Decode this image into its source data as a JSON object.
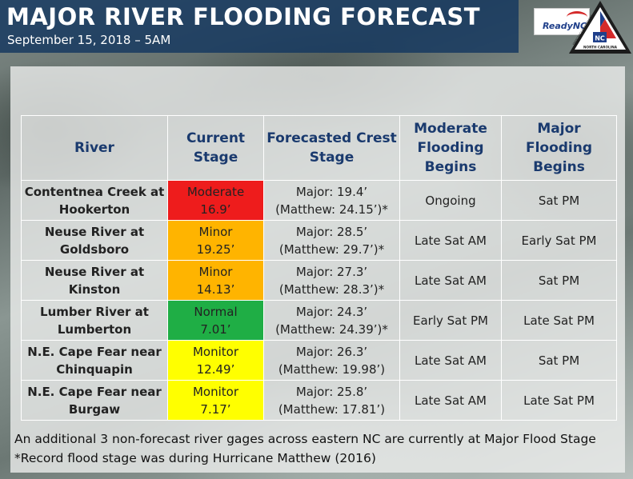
{
  "header": {
    "title": "MAJOR RIVER FLOODING FORECAST",
    "subtitle": "September 15, 2018 – 5AM"
  },
  "logos": {
    "readync_text": "ReadyNC",
    "emergency_text": "EMERGENCY MANAGEMENT",
    "state_text": "NORTH CAROLINA",
    "badge_text": "NC"
  },
  "table": {
    "headers": [
      "River",
      "Current Stage",
      "Forecasted Crest Stage",
      "Moderate Flooding Begins",
      "Major Flooding Begins"
    ],
    "rows": [
      {
        "river": "Contentnea Creek at Hookerton",
        "stage": "Moderate",
        "stage_value": "16.9’",
        "stage_color": "#ee1c1c",
        "crest": "Major: 19.4’",
        "crest_note": "(Matthew: 24.15’)*",
        "moderate": "Ongoing",
        "major": "Sat PM"
      },
      {
        "river": "Neuse River at Goldsboro",
        "stage": "Minor",
        "stage_value": "19.25’",
        "stage_color": "#ffb400",
        "crest": "Major: 28.5’",
        "crest_note": "(Matthew: 29.7’)*",
        "moderate": "Late Sat AM",
        "major": "Early Sat PM"
      },
      {
        "river": "Neuse River at Kinston",
        "stage": "Minor",
        "stage_value": "14.13’",
        "stage_color": "#ffb400",
        "crest": "Major: 27.3’",
        "crest_note": "(Matthew: 28.3’)*",
        "moderate": "Late Sat AM",
        "major": "Sat PM"
      },
      {
        "river": "Lumber River at Lumberton",
        "stage": "Normal",
        "stage_value": "7.01’",
        "stage_color": "#1fae45",
        "crest": "Major: 24.3’",
        "crest_note": "(Matthew: 24.39’)*",
        "moderate": "Early Sat PM",
        "major": "Late Sat PM"
      },
      {
        "river": "N.E. Cape Fear near Chinquapin",
        "stage": "Monitor",
        "stage_value": "12.49’",
        "stage_color": "#ffff00",
        "crest": "Major: 26.3’",
        "crest_note": "(Matthew: 19.98’)",
        "moderate": "Late Sat AM",
        "major": "Sat PM"
      },
      {
        "river": "N.E. Cape Fear near Burgaw",
        "stage": "Monitor",
        "stage_value": "7.17’",
        "stage_color": "#ffff00",
        "crest": "Major: 25.8’",
        "crest_note": "(Matthew: 17.81’)",
        "moderate": "Late Sat AM",
        "major": "Late Sat PM"
      }
    ]
  },
  "footnotes": [
    "An additional 3 non-forecast river gages across eastern NC are currently at Major Flood Stage",
    "*Record flood stage was during Hurricane Matthew (2016)"
  ]
}
